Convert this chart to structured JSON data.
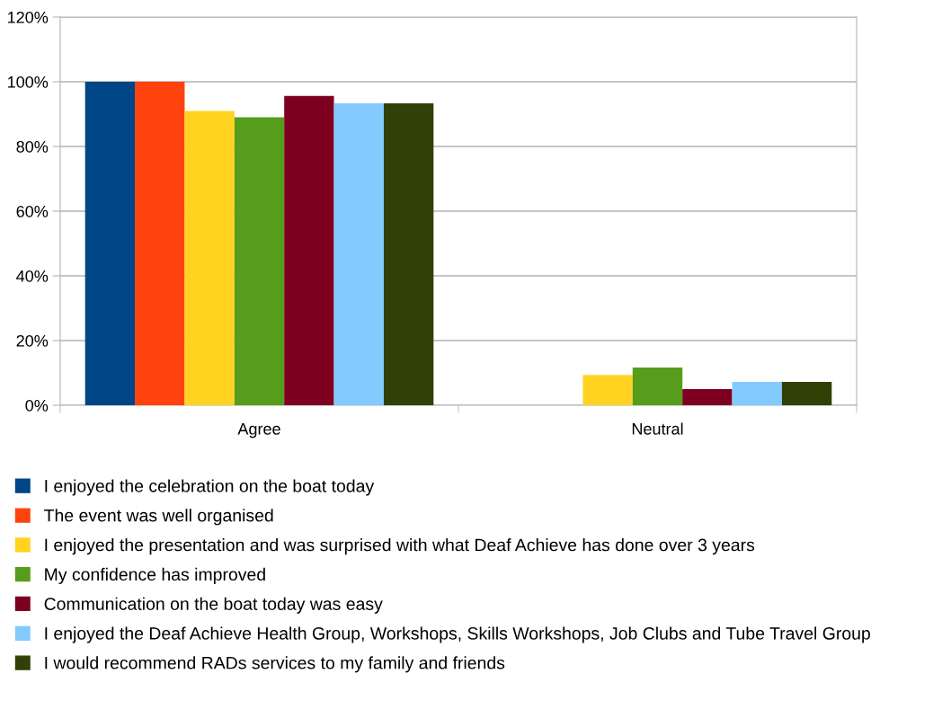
{
  "chart_data": {
    "type": "bar",
    "categories": [
      "Agree",
      "Neutral"
    ],
    "series": [
      {
        "name": "I enjoyed the celebration on the boat today",
        "color": "#004586",
        "values": [
          100,
          0
        ]
      },
      {
        "name": "The event was well organised",
        "color": "#ff420e",
        "values": [
          100,
          0
        ]
      },
      {
        "name": "I enjoyed the presentation and was surprised with what Deaf Achieve has done over 3 years",
        "color": "#ffd320",
        "values": [
          91,
          9.4
        ]
      },
      {
        "name": "My confidence has improved",
        "color": "#579d1c",
        "values": [
          89,
          11.7
        ]
      },
      {
        "name": "Communication on the boat today was easy",
        "color": "#7e0021",
        "values": [
          95.6,
          5
        ]
      },
      {
        "name": "I enjoyed the Deaf Achieve Health Group, Workshops, Skills Workshops, Job Clubs and Tube Travel Group",
        "color": "#83caff",
        "values": [
          93.3,
          7.2
        ]
      },
      {
        "name": "I would recommend RADs services to my family and friends",
        "color": "#314004",
        "values": [
          93.3,
          7.2
        ]
      }
    ],
    "ylim": [
      0,
      120
    ],
    "yticks": [
      {
        "value": 0,
        "label": "0%"
      },
      {
        "value": 20,
        "label": "20%"
      },
      {
        "value": 40,
        "label": "40%"
      },
      {
        "value": 60,
        "label": "60%"
      },
      {
        "value": 80,
        "label": "80%"
      },
      {
        "value": 100,
        "label": "100%"
      },
      {
        "value": 120,
        "label": "120%"
      }
    ],
    "grid": "y",
    "legend": "bottom"
  }
}
